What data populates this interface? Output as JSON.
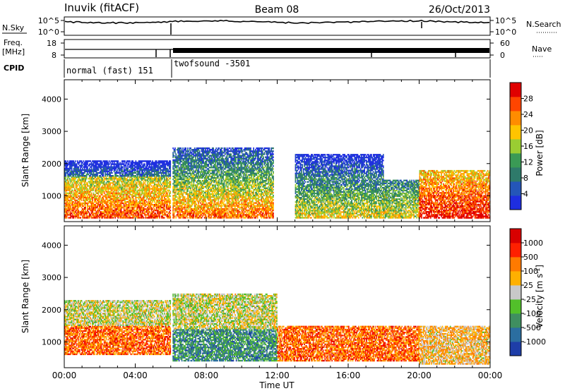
{
  "header": {
    "station": "Inuvik (fitACF)",
    "beam": "Beam 08",
    "date": "26/Oct/2013"
  },
  "strips": {
    "nsky_label": "N.Sky",
    "nsearch_label": "N.Search",
    "n_ticks": [
      "10^5",
      "10^0"
    ],
    "freq_label_top": "Freq.",
    "freq_label_unit": "[MHz]",
    "freq_ticks": [
      "18",
      "8"
    ],
    "nave_label": "Nave",
    "nave_ticks": [
      "60",
      "0"
    ],
    "cpid_label": "CPID",
    "modes": [
      {
        "name": "normal (fast) 151",
        "start_hour": 0,
        "end_hour": 6.1
      },
      {
        "name": "twofsound -3501",
        "start_hour": 6.1,
        "end_hour": 24
      }
    ]
  },
  "chart_data": [
    {
      "type": "heatmap",
      "parameter": "power",
      "ylabel": "Slant Range [km]",
      "ylim": [
        200,
        4600
      ],
      "yticks": [
        "1000",
        "2000",
        "3000",
        "4000"
      ],
      "xlim": [
        0,
        24
      ],
      "colorbar_label": "Power [dB]",
      "colorbar_ticks": [
        "28",
        "24",
        "20",
        "16",
        "12",
        "8",
        "4"
      ],
      "colorbar_colors": [
        "#1e2ee0",
        "#2456b8",
        "#2e7a6a",
        "#3a9a55",
        "#9acd32",
        "#ffc400",
        "#ff8c00",
        "#ff4500",
        "#e00000"
      ],
      "regions": [
        {
          "t0": 0.0,
          "t1": 6.0,
          "r0": 300,
          "r1": 1600,
          "level": 0.85
        },
        {
          "t0": 0.0,
          "t1": 6.0,
          "r0": 1600,
          "r1": 2100,
          "level": 0.25
        },
        {
          "t0": 6.1,
          "t1": 11.8,
          "r0": 300,
          "r1": 1400,
          "level": 0.8
        },
        {
          "t0": 6.1,
          "t1": 11.8,
          "r0": 1400,
          "r1": 2500,
          "level": 0.45
        },
        {
          "t0": 13.0,
          "t1": 20.0,
          "r0": 300,
          "r1": 1500,
          "level": 0.6
        },
        {
          "t0": 13.0,
          "t1": 18.0,
          "r0": 1500,
          "r1": 2300,
          "level": 0.3
        },
        {
          "t0": 20.0,
          "t1": 24.0,
          "r0": 300,
          "r1": 1800,
          "level": 0.95
        }
      ]
    },
    {
      "type": "heatmap",
      "parameter": "velocity",
      "ylabel": "Slant Range [km]",
      "ylim": [
        200,
        4600
      ],
      "yticks": [
        "1000",
        "2000",
        "3000",
        "4000"
      ],
      "xlim": [
        0,
        24
      ],
      "xlabel": "Time UT",
      "xticks": [
        "00:00",
        "04:00",
        "08:00",
        "12:00",
        "16:00",
        "20:00",
        "00:00"
      ],
      "colorbar_label": "Velocity [m s",
      "colorbar_unit_exponent": "-1",
      "colorbar_unit_close": "]",
      "colorbar_ticks": [
        "1000",
        "500",
        "100",
        "25",
        "-25",
        "-100",
        "-500",
        "-1000"
      ],
      "colorbar_colors": [
        "#1e3ea8",
        "#2b6ea0",
        "#3f8f60",
        "#52c02a",
        "#c8c8c8",
        "#ffb000",
        "#ff7a00",
        "#ff2000",
        "#d80000"
      ],
      "regions": [
        {
          "t0": 0.0,
          "t1": 6.0,
          "r0": 600,
          "r1": 1500,
          "level": 0.75
        },
        {
          "t0": 0.0,
          "t1": 6.0,
          "r0": 1500,
          "r1": 2300,
          "level": 0.5
        },
        {
          "t0": 6.1,
          "t1": 12.0,
          "r0": 400,
          "r1": 1400,
          "level": 0.25
        },
        {
          "t0": 6.1,
          "t1": 12.0,
          "r0": 1400,
          "r1": 2500,
          "level": 0.5
        },
        {
          "t0": 12.0,
          "t1": 20.0,
          "r0": 400,
          "r1": 1500,
          "level": 0.75
        },
        {
          "t0": 20.0,
          "t1": 24.0,
          "r0": 300,
          "r1": 1500,
          "level": 0.6
        }
      ]
    }
  ]
}
